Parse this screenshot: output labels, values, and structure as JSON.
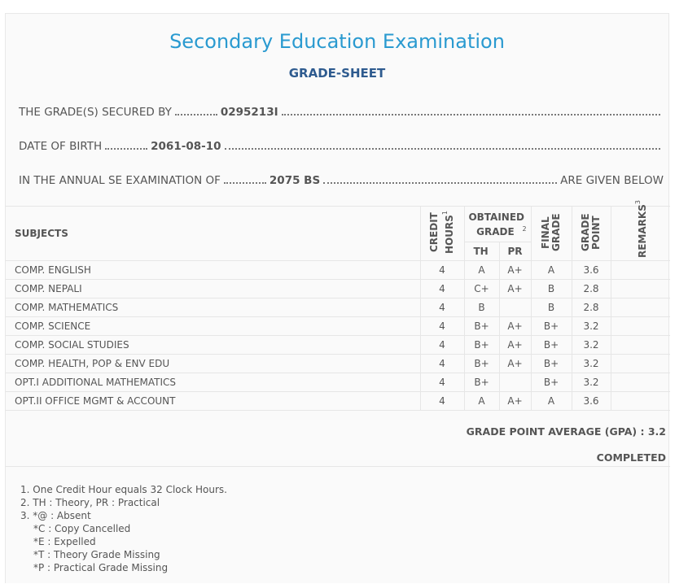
{
  "title": "Secondary Education Examination",
  "subtitle": "GRADE-SHEET",
  "fields": [
    {
      "label": "THE GRADE(S) SECURED BY",
      "value": "0295213I"
    },
    {
      "label": "DATE OF BIRTH",
      "value": "2061-08-10"
    },
    {
      "label": "IN THE ANNUAL SE EXAMINATION OF",
      "value": "2075 BS",
      "suffix": "ARE GIVEN BELOW"
    }
  ],
  "table": {
    "headers": {
      "subjects": "SUBJECTS",
      "credit": "CREDIT HOURS",
      "credit_sup": "1",
      "obtained": "OBTAINED GRADE",
      "obtained_sup": "2",
      "th": "TH",
      "pr": "PR",
      "final": "FINAL GRADE",
      "gp": "GRADE POINT",
      "remarks": "REMARKS",
      "remarks_sup": "3"
    },
    "rows": [
      [
        "COMP. ENGLISH",
        4,
        "A",
        "A+",
        "A",
        3.6
      ],
      [
        "COMP. NEPALI",
        4,
        "C+",
        "A+",
        "B",
        2.8
      ],
      [
        "COMP. MATHEMATICS",
        4,
        "B",
        null,
        "B",
        2.8
      ],
      [
        "COMP. SCIENCE",
        4,
        "B+",
        "A+",
        "B+",
        3.2
      ],
      [
        "COMP. SOCIAL STUDIES",
        4,
        "B+",
        "A+",
        "B+",
        3.2
      ],
      [
        "COMP. HEALTH, POP & ENV EDU",
        4,
        "B+",
        "A+",
        "B+",
        3.2
      ],
      [
        "OPT.I ADDITIONAL MATHEMATICS",
        4,
        "B+",
        null,
        "B+",
        3.2
      ],
      [
        "OPT.II OFFICE MGMT & ACCOUNT",
        4,
        "A",
        "A+",
        "A",
        3.6
      ]
    ]
  },
  "gpa": {
    "label": "GRADE POINT AVERAGE (GPA) :",
    "value": 3.2
  },
  "status": "COMPLETED",
  "notes": [
    "1. One Credit Hour equals 32 Clock Hours.",
    "2. TH : Theory, PR : Practical",
    "3. *@ : Absent",
    "*C : Copy Cancelled",
    "*E : Expelled",
    "*T : Theory Grade Missing",
    "*P : Practical Grade Missing"
  ]
}
